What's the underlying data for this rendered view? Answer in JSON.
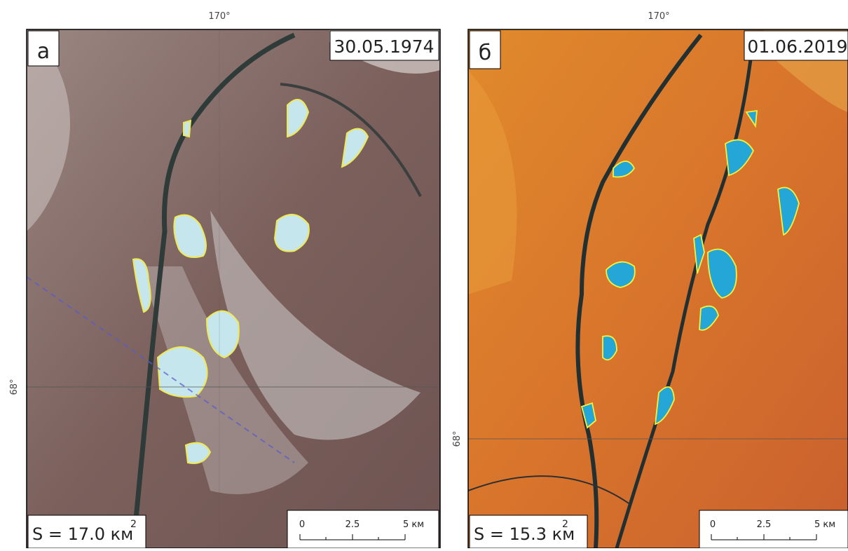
{
  "panels": [
    {
      "label": "а",
      "date": "30.05.1974",
      "area": "S = 17.0 км",
      "area_sup": "2",
      "lon": "170°",
      "lat": "68°",
      "scale": [
        "0",
        "2.5",
        "5 км"
      ]
    },
    {
      "label": "б",
      "date": "01.06.2019",
      "area": "S = 15.3 км",
      "area_sup": "2",
      "lon": "170°",
      "lat": "68°",
      "scale": [
        "0",
        "2.5",
        "5 км"
      ]
    }
  ]
}
